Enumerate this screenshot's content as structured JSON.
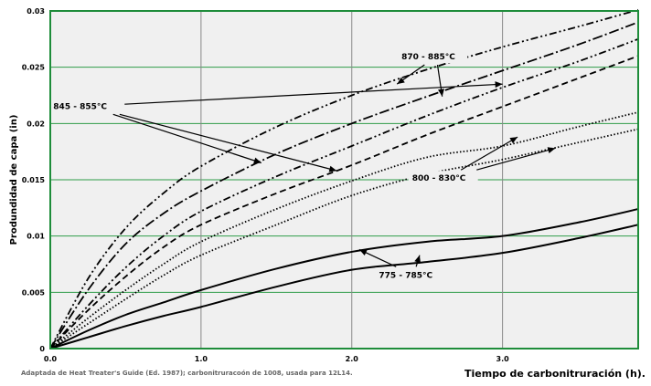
{
  "chart_data": {
    "type": "line",
    "xlabel": "Tiempo de carbonitruración (h).",
    "ylabel": "Produndidad de capa (in)",
    "source_note": "Adaptada de Heat Treater's Guide (Ed. 1987); carbonitruracoón de 1008, usada para 12L14.",
    "xlim": [
      0,
      3.9
    ],
    "ylim": [
      0,
      0.03
    ],
    "grid": true,
    "x_ticks": [
      "0.0",
      "1.0",
      "2.0",
      "3.0"
    ],
    "y_ticks": [
      "0",
      "0.005",
      "0.01",
      "0.015",
      "0.02",
      "0.025",
      "0.03"
    ],
    "colors": {
      "frame": "#1e8c3a",
      "hgrid": "#2e9b48",
      "vgrid": "#888888",
      "plot_bg": "#f0f0f0",
      "line": "#000000"
    },
    "series": [
      {
        "group": "870 - 885°C",
        "style": "dash-dot-dot",
        "x": [
          0,
          0.25,
          0.5,
          0.75,
          1.0,
          1.5,
          2.0,
          2.5,
          3.0,
          3.5,
          3.9
        ],
        "y": [
          0,
          0.0062,
          0.0107,
          0.0138,
          0.0162,
          0.0197,
          0.0225,
          0.0248,
          0.0268,
          0.0286,
          0.0301
        ]
      },
      {
        "group": "870 - 885°C",
        "style": "long-dash-dot",
        "x": [
          0,
          0.25,
          0.5,
          0.75,
          1.0,
          1.5,
          2.0,
          2.5,
          3.0,
          3.5,
          3.9
        ],
        "y": [
          0,
          0.0052,
          0.0093,
          0.012,
          0.014,
          0.0173,
          0.02,
          0.0224,
          0.0247,
          0.027,
          0.029
        ]
      },
      {
        "group": "845 - 855°C",
        "style": "dash-dot-dot",
        "x": [
          0,
          0.25,
          0.5,
          0.75,
          1.0,
          1.5,
          2.0,
          2.5,
          3.0,
          3.5,
          3.9
        ],
        "y": [
          0,
          0.0038,
          0.0072,
          0.01,
          0.0122,
          0.0153,
          0.018,
          0.0207,
          0.0232,
          0.0255,
          0.0275
        ]
      },
      {
        "group": "845 - 855°C",
        "style": "dashed",
        "x": [
          0,
          0.25,
          0.5,
          0.75,
          1.0,
          1.5,
          2.0,
          2.5,
          3.0,
          3.5,
          3.9
        ],
        "y": [
          0,
          0.0034,
          0.0064,
          0.009,
          0.011,
          0.0138,
          0.0163,
          0.019,
          0.0215,
          0.024,
          0.026
        ]
      },
      {
        "group": "800 - 830°C",
        "style": "dotted",
        "x": [
          0,
          0.25,
          0.5,
          0.75,
          1.0,
          1.5,
          2.0,
          2.5,
          3.0,
          3.5,
          3.9
        ],
        "y": [
          0,
          0.0027,
          0.0052,
          0.0075,
          0.0095,
          0.0124,
          0.0149,
          0.017,
          0.018,
          0.0197,
          0.021
        ]
      },
      {
        "group": "800 - 830°C",
        "style": "dotted",
        "x": [
          0,
          0.25,
          0.5,
          0.75,
          1.0,
          1.5,
          2.0,
          2.5,
          3.0,
          3.5,
          3.9
        ],
        "y": [
          0,
          0.0022,
          0.0044,
          0.0065,
          0.0083,
          0.011,
          0.0136,
          0.0155,
          0.0168,
          0.0183,
          0.0195
        ]
      },
      {
        "group": "775 - 785°C",
        "style": "solid",
        "x": [
          0,
          0.25,
          0.5,
          0.75,
          1.0,
          1.5,
          2.0,
          2.5,
          3.0,
          3.5,
          3.9
        ],
        "y": [
          0,
          0.0016,
          0.003,
          0.0041,
          0.0052,
          0.0071,
          0.0086,
          0.0095,
          0.01,
          0.0112,
          0.0124
        ]
      },
      {
        "group": "775 - 785°C",
        "style": "solid",
        "x": [
          0,
          0.25,
          0.5,
          0.75,
          1.0,
          1.5,
          2.0,
          2.5,
          3.0,
          3.5,
          3.9
        ],
        "y": [
          0,
          0.001,
          0.002,
          0.0029,
          0.0037,
          0.0055,
          0.007,
          0.0077,
          0.0085,
          0.0098,
          0.011
        ]
      }
    ],
    "annotations": [
      {
        "text": "870 - 885°C",
        "at": [
          2.33,
          0.0257
        ],
        "arrows_to": [
          [
            2.3,
            0.0235
          ],
          [
            2.6,
            0.0224
          ]
        ]
      },
      {
        "text": "845 - 855°C",
        "at": [
          0.02,
          0.0213
        ],
        "arrows_to": [
          [
            1.4,
            0.0165
          ],
          [
            1.9,
            0.0158
          ],
          [
            3.0,
            0.0235
          ]
        ]
      },
      {
        "text": "800 - 830°C",
        "at": [
          2.4,
          0.0149
        ],
        "arrows_to": [
          [
            3.1,
            0.0188
          ],
          [
            3.35,
            0.0178
          ]
        ]
      },
      {
        "text": "775 - 785°C",
        "at": [
          2.18,
          0.0063
        ],
        "arrows_to": [
          [
            2.05,
            0.0088
          ],
          [
            2.45,
            0.0083
          ]
        ]
      }
    ]
  }
}
